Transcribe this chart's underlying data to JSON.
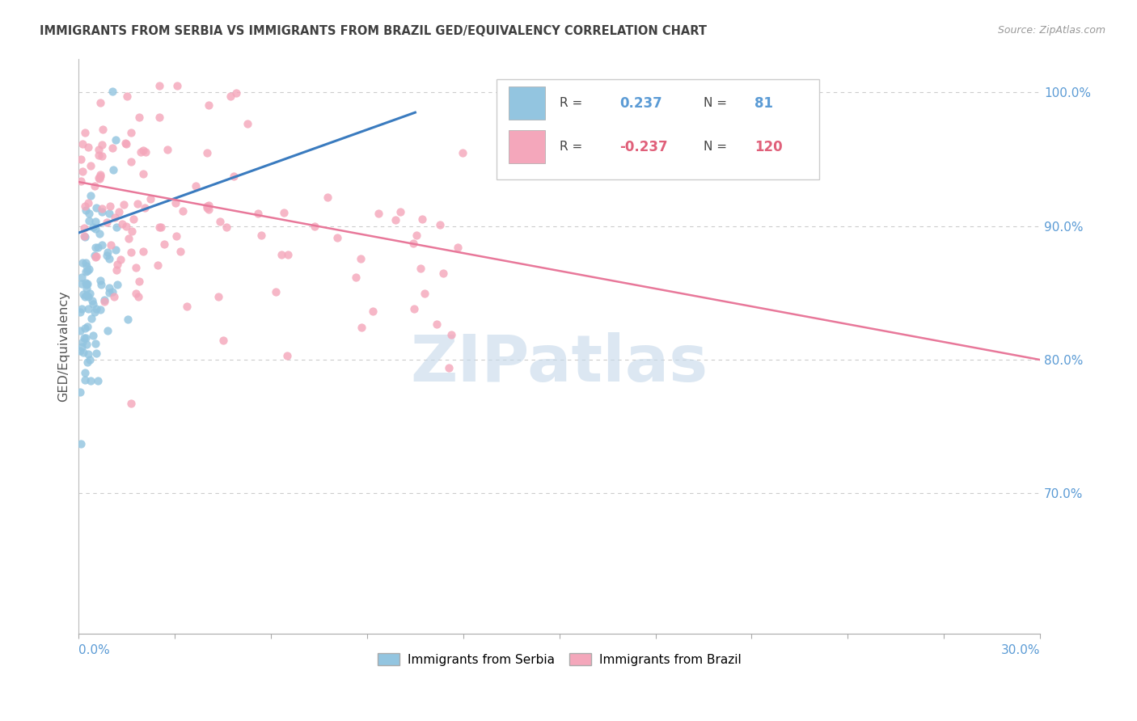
{
  "title": "IMMIGRANTS FROM SERBIA VS IMMIGRANTS FROM BRAZIL GED/EQUIVALENCY CORRELATION CHART",
  "source": "Source: ZipAtlas.com",
  "ylabel": "GED/Equivalency",
  "serbia_R": 0.237,
  "serbia_N": 81,
  "brazil_R": -0.237,
  "brazil_N": 120,
  "color_serbia": "#93c5e0",
  "color_brazil": "#f4a7bb",
  "color_serbia_line": "#3a7bbf",
  "color_brazil_line": "#e8789a",
  "watermark_text": "ZIPatlas",
  "watermark_color": "#c5d8ea",
  "background_color": "#ffffff",
  "grid_color": "#cccccc",
  "right_tick_color": "#5b9bd5",
  "title_color": "#404040",
  "source_color": "#999999",
  "xlabel_color": "#5b9bd5",
  "ylabel_color": "#555555",
  "legend_text_color": "#444444",
  "serbia_line_x0": 0.0,
  "serbia_line_y0": 0.895,
  "serbia_line_x1": 0.105,
  "serbia_line_y1": 0.985,
  "brazil_line_x0": 0.0,
  "brazil_line_y0": 0.933,
  "brazil_line_x1": 0.3,
  "brazil_line_y1": 0.8,
  "xmin": 0.0,
  "xmax": 0.3,
  "ymin": 0.595,
  "ymax": 1.025,
  "right_yticks": [
    0.7,
    0.8,
    0.9,
    1.0
  ],
  "right_ylabels": [
    "70.0%",
    "80.0%",
    "90.0%",
    "100.0%"
  ],
  "legend_entries": [
    {
      "label": "R =",
      "value": "0.237",
      "N_label": "N =",
      "N_value": "81",
      "value_color": "#5b9bd5",
      "patch_color": "#93c5e0"
    },
    {
      "label": "R =",
      "value": "-0.237",
      "N_label": "N =",
      "N_value": "120",
      "value_color": "#e0607a",
      "patch_color": "#f4a7bb"
    }
  ],
  "bottom_legend": [
    "Immigrants from Serbia",
    "Immigrants from Brazil"
  ]
}
